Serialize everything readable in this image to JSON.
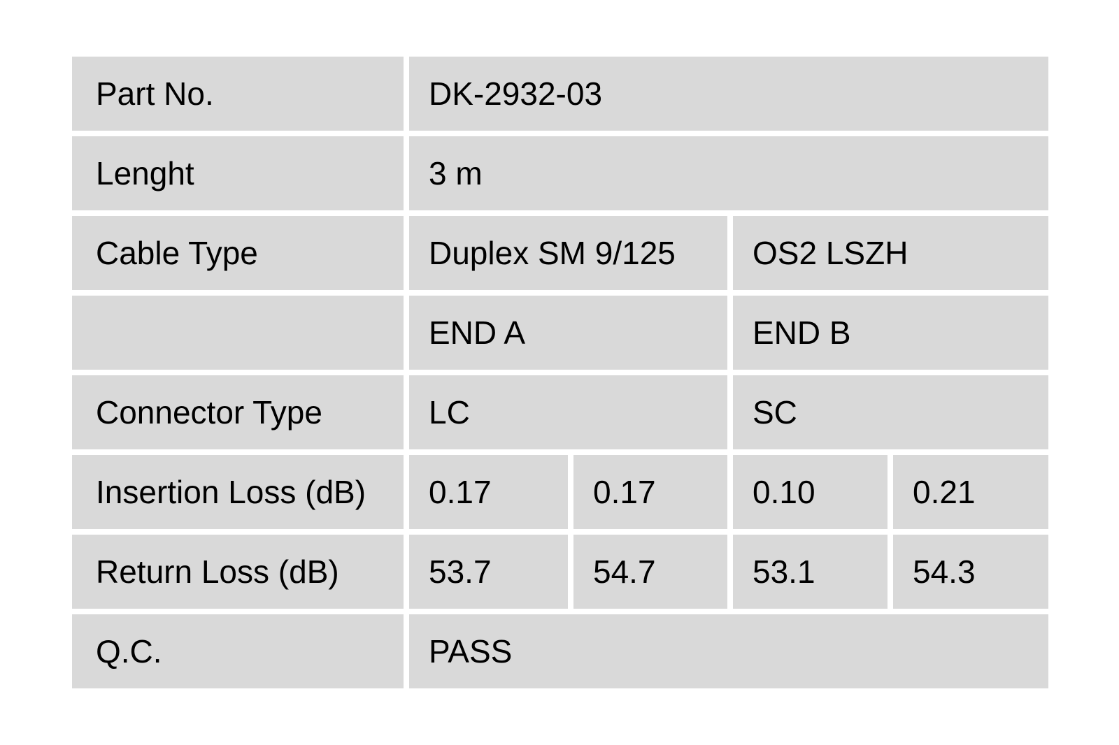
{
  "page": {
    "background": "#ffffff"
  },
  "table": {
    "cell_bg": "#d9d9d9",
    "text_color": "#000000",
    "rows": [
      {
        "label": "Part No.",
        "cells": [
          {
            "text": "DK-2932-03"
          }
        ]
      },
      {
        "label": "Lenght",
        "cells": [
          {
            "text": "3 m"
          }
        ]
      },
      {
        "label": "Cable Type",
        "cells": [
          {
            "text": "Duplex SM 9/125"
          },
          {
            "text": "OS2 LSZH"
          }
        ]
      },
      {
        "label": "",
        "cells": [
          {
            "text": "END A"
          },
          {
            "text": "END B"
          }
        ]
      },
      {
        "label": "Connector Type",
        "cells": [
          {
            "text": "LC"
          },
          {
            "text": "SC"
          }
        ]
      },
      {
        "label": "Insertion Loss (dB)",
        "cells": [
          {
            "text": "0.17"
          },
          {
            "text": "0.17"
          },
          {
            "text": "0.10"
          },
          {
            "text": "0.21"
          }
        ]
      },
      {
        "label": "Return Loss (dB)",
        "cells": [
          {
            "text": "53.7"
          },
          {
            "text": "54.7"
          },
          {
            "text": "53.1"
          },
          {
            "text": "54.3"
          }
        ]
      },
      {
        "label": "Q.C.",
        "cells": [
          {
            "text": "PASS"
          }
        ]
      }
    ]
  }
}
